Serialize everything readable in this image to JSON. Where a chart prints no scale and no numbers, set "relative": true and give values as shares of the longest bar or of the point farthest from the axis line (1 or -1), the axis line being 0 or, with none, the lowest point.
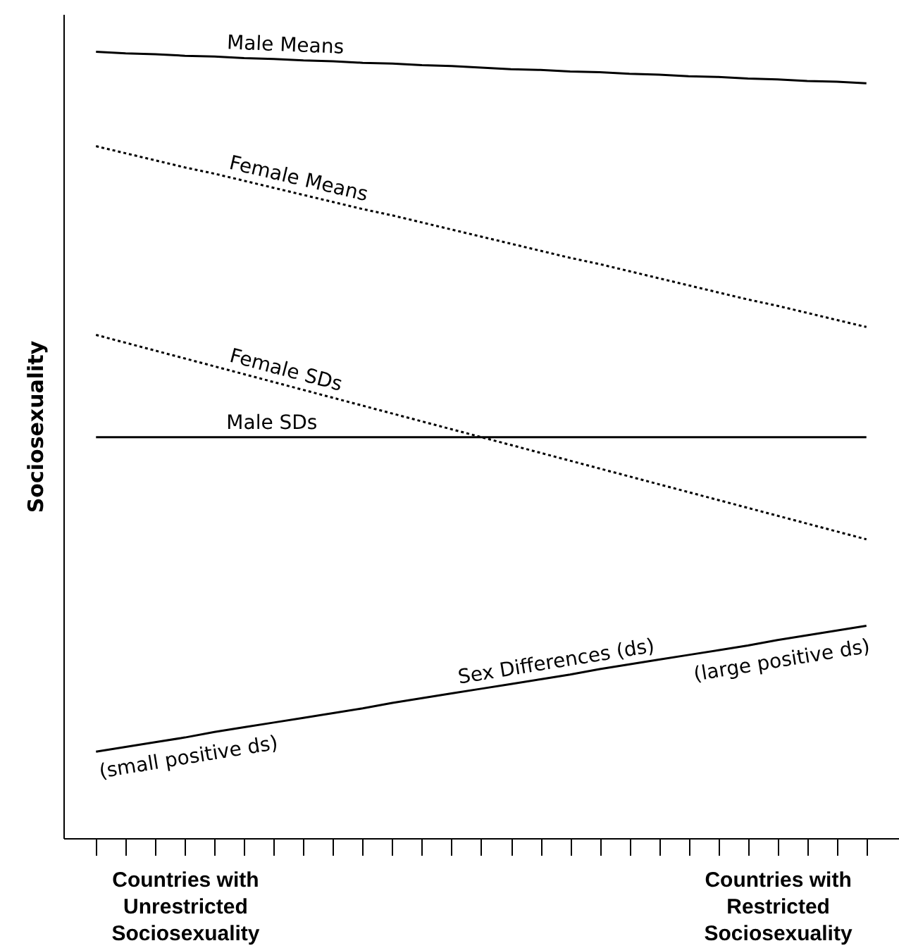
{
  "chart_data": {
    "type": "line",
    "relative": true,
    "ylabel": "Sociosexuality",
    "categories": [
      null,
      null,
      null,
      "Countries with\nUnrestricted\nSociosexuality",
      null,
      null,
      null,
      null,
      null,
      null,
      null,
      null,
      null,
      null,
      null,
      null,
      null,
      null,
      null,
      null,
      null,
      null,
      null,
      "Countries with\nRestricted\nSociosexuality",
      null,
      null,
      null
    ],
    "series": [
      {
        "name": "Male Means",
        "color": "#000000",
        "line_style": "solid",
        "values": [
          1.0,
          0.998,
          0.997,
          0.995,
          0.994,
          0.992,
          0.991,
          0.989,
          0.988,
          0.986,
          0.985,
          0.983,
          0.982,
          0.98,
          0.978,
          0.977,
          0.975,
          0.974,
          0.972,
          0.971,
          0.969,
          0.968,
          0.966,
          0.965,
          0.963,
          0.962,
          0.96
        ]
      },
      {
        "name": "Female Means",
        "color": "#000000",
        "line_style": "dotted",
        "values": [
          0.88,
          0.871,
          0.862,
          0.853,
          0.845,
          0.836,
          0.827,
          0.818,
          0.809,
          0.8,
          0.792,
          0.783,
          0.774,
          0.765,
          0.756,
          0.747,
          0.738,
          0.73,
          0.721,
          0.712,
          0.703,
          0.694,
          0.685,
          0.677,
          0.668,
          0.659,
          0.65
        ]
      },
      {
        "name": "Female SDs",
        "color": "#000000",
        "line_style": "dotted",
        "values": [
          0.64,
          0.63,
          0.62,
          0.61,
          0.6,
          0.59,
          0.58,
          0.57,
          0.56,
          0.55,
          0.54,
          0.53,
          0.52,
          0.51,
          0.5,
          0.49,
          0.48,
          0.47,
          0.46,
          0.45,
          0.44,
          0.43,
          0.42,
          0.41,
          0.4,
          0.39,
          0.38
        ]
      },
      {
        "name": "Male SDs",
        "color": "#000000",
        "line_style": "solid",
        "values": [
          0.51,
          0.51,
          0.51,
          0.51,
          0.51,
          0.51,
          0.51,
          0.51,
          0.51,
          0.51,
          0.51,
          0.51,
          0.51,
          0.51,
          0.51,
          0.51,
          0.51,
          0.51,
          0.51,
          0.51,
          0.51,
          0.51,
          0.51,
          0.51,
          0.51,
          0.51,
          0.51
        ]
      },
      {
        "name": "Sex Differences (ds)",
        "color": "#000000",
        "line_style": "solid",
        "values": [
          0.11,
          0.116,
          0.122,
          0.128,
          0.135,
          0.141,
          0.147,
          0.153,
          0.159,
          0.165,
          0.172,
          0.178,
          0.184,
          0.19,
          0.196,
          0.202,
          0.208,
          0.215,
          0.221,
          0.227,
          0.233,
          0.239,
          0.245,
          0.252,
          0.258,
          0.264,
          0.27
        ]
      }
    ],
    "annotations": [
      "(small positive ds)",
      "(large positive ds)"
    ],
    "legend": false,
    "grid": false
  }
}
